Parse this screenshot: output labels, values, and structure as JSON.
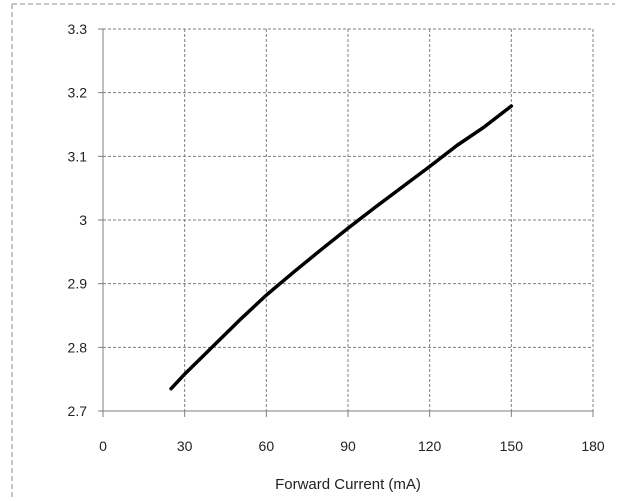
{
  "chart_data": {
    "type": "line",
    "title": "",
    "xlabel": "Forward Current (mA)",
    "ylabel": "",
    "xlim": [
      0,
      180
    ],
    "ylim": [
      2.7,
      3.3
    ],
    "x_ticks": [
      0,
      30,
      60,
      90,
      120,
      150,
      180
    ],
    "y_ticks": [
      2.7,
      2.8,
      2.9,
      3,
      3.1,
      3.2,
      3.3
    ],
    "x_tick_labels": [
      "0",
      "30",
      "60",
      "90",
      "120",
      "150",
      "180"
    ],
    "y_tick_labels": [
      "2.7",
      "2.8",
      "2.9",
      "3",
      "3.1",
      "3.2",
      "3.3"
    ],
    "grid": true,
    "legend": "none",
    "series": [
      {
        "color": "#000000",
        "x": [
          25,
          30,
          40,
          50,
          60,
          70,
          80,
          90,
          100,
          110,
          120,
          130,
          140,
          150
        ],
        "y": [
          2.735,
          2.758,
          2.8,
          2.842,
          2.882,
          2.918,
          2.953,
          2.987,
          3.02,
          3.052,
          3.084,
          3.117,
          3.146,
          3.179
        ]
      }
    ]
  }
}
